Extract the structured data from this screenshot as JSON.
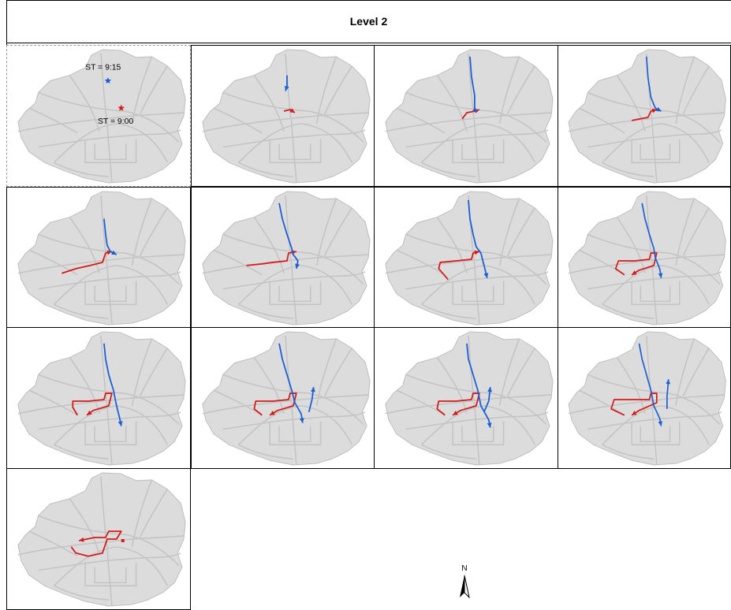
{
  "title": "Level 2",
  "colors": {
    "region_fill": "#dcdcdc",
    "road": "#c4c4c4",
    "route_red": "#d61a1a",
    "route_blue": "#1a5fd6"
  },
  "first_panel_labels": {
    "blue_start": "ST = 9:15",
    "red_start": "ST = 9:00"
  },
  "north_label": "N",
  "panels": [
    {
      "id": 1,
      "red": 0,
      "blue": 0
    },
    {
      "id": 2,
      "red": 1,
      "blue": 1
    },
    {
      "id": 3,
      "red": 2,
      "blue": 2
    },
    {
      "id": 4,
      "red": 3,
      "blue": 3
    },
    {
      "id": 5,
      "red": 4,
      "blue": 4
    },
    {
      "id": 6,
      "red": 5,
      "blue": 5
    },
    {
      "id": 7,
      "red": 6,
      "blue": 6
    },
    {
      "id": 8,
      "red": 7,
      "blue": 7
    },
    {
      "id": 9,
      "red": 8,
      "blue": 8
    },
    {
      "id": 10,
      "red": 9,
      "blue": 9
    },
    {
      "id": 11,
      "red": 10,
      "blue": 10
    },
    {
      "id": 12,
      "red": 11,
      "blue": 11
    },
    {
      "id": 13,
      "red": 12,
      "blue": 0
    }
  ]
}
